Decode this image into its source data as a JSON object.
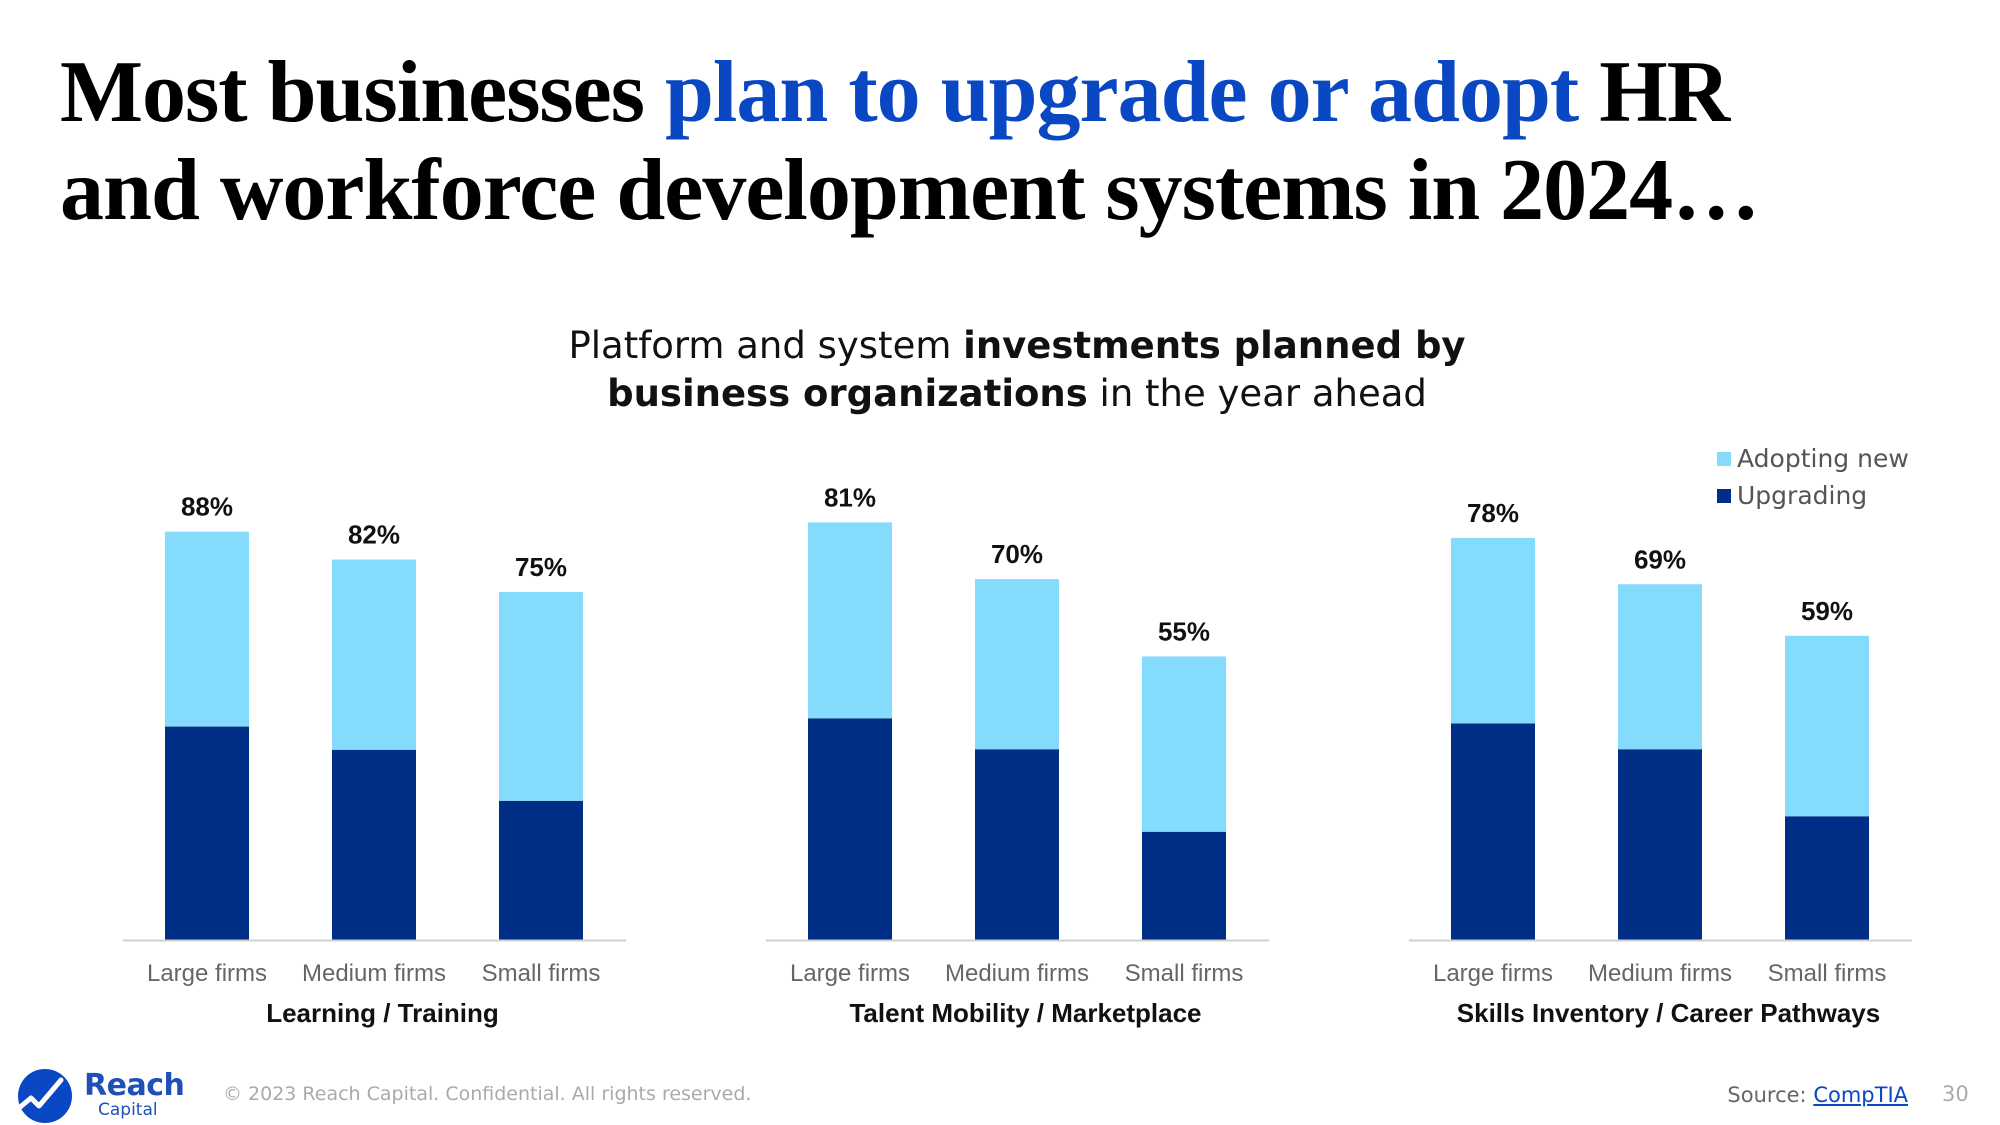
{
  "title": {
    "part1": "Most businesses ",
    "highlight": "plan to upgrade or adopt",
    "part2": " HR",
    "line2": "and workforce development systems in 2024…"
  },
  "subtitle": {
    "a": "Platform and system ",
    "b": "investments planned by",
    "c": "business organizations",
    "d": " in the year ahead"
  },
  "legend": {
    "items": [
      {
        "label": "Adopting new",
        "color": "#85dbfc"
      },
      {
        "label": "Upgrading",
        "color": "#002d86"
      }
    ]
  },
  "chart_data": [
    {
      "type": "bar",
      "stacked": true,
      "title": "Learning / Training",
      "categories": [
        "Large firms",
        "Medium firms",
        "Small firms"
      ],
      "totals_labels": [
        "88%",
        "82%",
        "75%"
      ],
      "series": [
        {
          "name": "Upgrading",
          "values": [
            46,
            41,
            30
          ],
          "color": "#002d86"
        },
        {
          "name": "Adopting new",
          "values": [
            42,
            41,
            45
          ],
          "color": "#85dbfc"
        }
      ],
      "ylim": [
        0,
        100
      ]
    },
    {
      "type": "bar",
      "stacked": true,
      "title": "Talent Mobility / Marketplace",
      "categories": [
        "Large firms",
        "Medium firms",
        "Small firms"
      ],
      "totals_labels": [
        "81%",
        "70%",
        "55%"
      ],
      "series": [
        {
          "name": "Upgrading",
          "values": [
            43,
            37,
            21
          ],
          "color": "#002d86"
        },
        {
          "name": "Adopting new",
          "values": [
            38,
            33,
            34
          ],
          "color": "#85dbfc"
        }
      ],
      "ylim": [
        0,
        90
      ]
    },
    {
      "type": "bar",
      "stacked": true,
      "title": "Skills Inventory / Career Pathways",
      "categories": [
        "Large firms",
        "Medium firms",
        "Small firms"
      ],
      "totals_labels": [
        "78%",
        "69%",
        "59%"
      ],
      "series": [
        {
          "name": "Upgrading",
          "values": [
            42,
            37,
            24
          ],
          "color": "#002d86"
        },
        {
          "name": "Adopting new",
          "values": [
            36,
            32,
            35
          ],
          "color": "#85dbfc"
        }
      ],
      "ylim": [
        0,
        90
      ]
    }
  ],
  "footer": {
    "logo_word": "Reach",
    "logo_sub": "Capital",
    "copyright": "© 2023 Reach Capital. Confidential. All rights reserved.",
    "source_label": "Source: ",
    "source_link": "CompTIA",
    "page_number": "30"
  }
}
